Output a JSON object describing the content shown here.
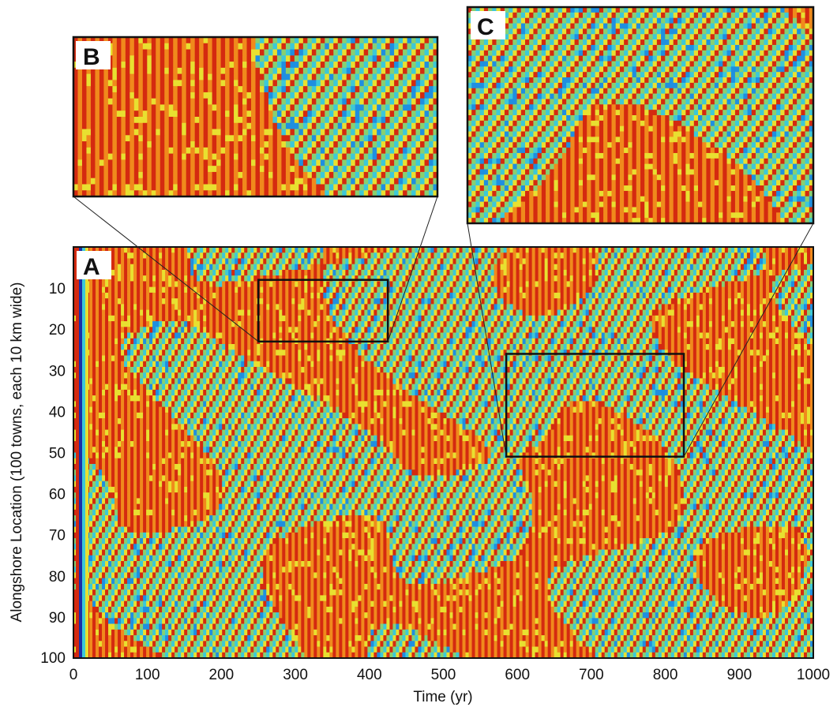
{
  "chart_data": [
    {
      "type": "heatmap",
      "panel": "A",
      "xlabel": "Time (yr)",
      "ylabel": "Alongshore Location (100 towns, each 10 km wide)",
      "xlim": [
        0,
        1000
      ],
      "ylim": [
        0,
        100
      ],
      "y_reversed": true,
      "x_ticks": [
        0,
        100,
        200,
        300,
        400,
        500,
        600,
        700,
        800,
        900,
        1000
      ],
      "x_tick_labels": [
        "0",
        "100",
        "200",
        "300",
        "400",
        "500",
        "600",
        "700",
        "800",
        "900",
        "1000"
      ],
      "y_ticks": [
        10,
        20,
        30,
        40,
        50,
        60,
        70,
        80,
        90,
        100
      ],
      "y_tick_labels": [
        "10",
        "20",
        "30",
        "40",
        "50",
        "60",
        "70",
        "80",
        "90",
        "100"
      ],
      "colormap": [
        "#1a2ea8",
        "#1f8fe0",
        "#3cc8d8",
        "#88d070",
        "#e8e030",
        "#f08a1c",
        "#d42a10"
      ],
      "zoom_regions": [
        {
          "label": "B",
          "x_range": [
            250,
            425
          ],
          "y_range": [
            8,
            23
          ]
        },
        {
          "label": "C",
          "x_range": [
            585,
            825
          ],
          "y_range": [
            26,
            51
          ]
        }
      ]
    },
    {
      "type": "heatmap",
      "panel": "B",
      "xlim": [
        250,
        425
      ],
      "ylim": [
        8,
        23
      ]
    },
    {
      "type": "heatmap",
      "panel": "C",
      "xlim": [
        585,
        825
      ],
      "ylim": [
        26,
        51
      ]
    }
  ],
  "panels": {
    "A": "A",
    "B": "B",
    "C": "C"
  },
  "colors": {
    "frame": "#111111",
    "zoom_box": "#111111",
    "connector": "#222222"
  }
}
